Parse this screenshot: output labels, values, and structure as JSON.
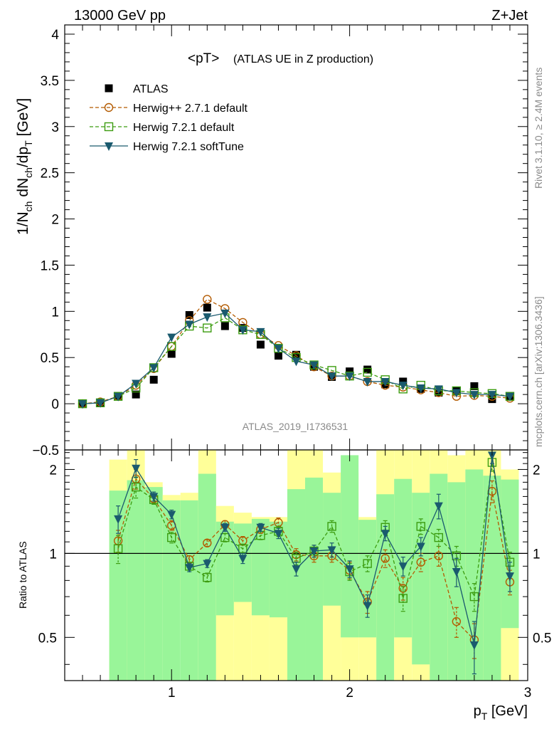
{
  "header": {
    "left": "13000 GeV pp",
    "right": "Z+Jet"
  },
  "side_labels": {
    "rivet": "Rivet 3.1.10, ≥ 2.4M events",
    "mcplots": "mcplots.cern.ch [arXiv:1306.3436]"
  },
  "watermark": "ATLAS_2019_I1736531",
  "chart_data": [
    {
      "type": "scatter",
      "title": "<pT> (ATLAS UE in Z production)",
      "title_main": "<pT>",
      "title_sub": "(ATLAS UE in Z production)",
      "ylabel": "1/N_ch dN_ch/dp_T [GeV]",
      "xlim": [
        0.4,
        3.0
      ],
      "ylim": [
        -0.5,
        4.1
      ],
      "x_ticks": [],
      "y_ticks": [
        "−0.5",
        "0",
        "0.5",
        "1",
        "1.5",
        "2",
        "2.5",
        "3",
        "3.5",
        "4"
      ],
      "y_tick_values": [
        -0.5,
        0,
        0.5,
        1,
        1.5,
        2,
        2.5,
        3,
        3.5,
        4
      ],
      "legend_position": "top-left",
      "x": [
        0.5,
        0.6,
        0.7,
        0.8,
        0.9,
        1.0,
        1.1,
        1.2,
        1.3,
        1.4,
        1.5,
        1.6,
        1.7,
        1.8,
        1.9,
        2.0,
        2.1,
        2.2,
        2.3,
        2.4,
        2.5,
        2.6,
        2.7,
        2.8,
        2.9
      ],
      "series": [
        {
          "name": "ATLAS",
          "color": "#000000",
          "marker": "filled-square",
          "values": [
            0.0,
            0.01,
            0.08,
            0.1,
            0.26,
            0.54,
            0.96,
            1.04,
            0.84,
            0.82,
            0.64,
            0.52,
            0.53,
            0.4,
            0.29,
            0.35,
            0.37,
            0.21,
            0.24,
            0.16,
            0.12,
            0.14,
            0.19,
            0.05,
            0.08
          ]
        },
        {
          "name": "Herwig++ 2.7.1 default",
          "color": "#b35a00",
          "marker": "open-circle",
          "values": [
            0.0,
            0.02,
            0.08,
            0.2,
            0.38,
            0.62,
            0.9,
            1.13,
            1.03,
            0.88,
            0.75,
            0.63,
            0.52,
            0.4,
            0.3,
            0.3,
            0.24,
            0.2,
            0.18,
            0.15,
            0.12,
            0.08,
            0.09,
            0.08,
            0.06
          ]
        },
        {
          "name": "Herwig 7.2.1 default",
          "color": "#3c9c10",
          "marker": "open-square",
          "values": [
            0.0,
            0.01,
            0.08,
            0.17,
            0.39,
            0.62,
            0.84,
            0.82,
            0.93,
            0.8,
            0.75,
            0.6,
            0.5,
            0.42,
            0.36,
            0.3,
            0.34,
            0.26,
            0.16,
            0.2,
            0.14,
            0.14,
            0.12,
            0.11,
            0.08
          ]
        },
        {
          "name": "Herwig 7.2.1 softTune",
          "color": "#1a5a6e",
          "marker": "filled-triangle-down",
          "values": [
            0.0,
            0.01,
            0.08,
            0.22,
            0.39,
            0.72,
            0.86,
            0.94,
            0.98,
            0.8,
            0.78,
            0.6,
            0.46,
            0.42,
            0.3,
            0.3,
            0.24,
            0.24,
            0.2,
            0.17,
            0.16,
            0.12,
            0.1,
            0.1,
            0.08
          ]
        }
      ]
    },
    {
      "type": "scatter",
      "title": "",
      "ylabel": "Ratio to ATLAS",
      "xlabel": "p_T [GeV]",
      "xlim": [
        0.4,
        3.0
      ],
      "ylim": [
        0.35,
        2.35
      ],
      "x_ticks": [
        "1",
        "2",
        "3"
      ],
      "x_tick_values": [
        1,
        2,
        3
      ],
      "y_ticks_left": [
        "0.5",
        "1",
        "2"
      ],
      "y_ticks_right": [
        "0.5",
        "1",
        "2"
      ],
      "y_tick_values": [
        0.5,
        1,
        2
      ],
      "reference_line": 1,
      "bands": {
        "x_edges": [
          0.65,
          0.75,
          0.85,
          0.95,
          1.05,
          1.15,
          1.25,
          1.35,
          1.45,
          1.55,
          1.65,
          1.75,
          1.85,
          1.95,
          2.05,
          2.15,
          2.25,
          2.35,
          2.45,
          2.55,
          2.65,
          2.75,
          2.85,
          2.95
        ],
        "yellow_color": "#ffff99",
        "green_color": "#99f599",
        "yellow_low": [
          0.35,
          0.35,
          0.35,
          0.71,
          0.7,
          0.35,
          0.35,
          0.35,
          0.35,
          0.35,
          0.35,
          0.35,
          0.35,
          0.35,
          0.35,
          0.35,
          0.35,
          0.35,
          0.35,
          0.35,
          0.35,
          0.35,
          0.35
        ],
        "yellow_high": [
          2.17,
          2.35,
          1.8,
          1.62,
          1.65,
          2.35,
          1.48,
          1.4,
          1.35,
          1.35,
          2.35,
          2.35,
          1.95,
          1.95,
          1.35,
          2.35,
          2.35,
          2.35,
          2.35,
          2.25,
          2.35,
          2.35,
          2.0
        ],
        "green_low": [
          0.35,
          0.35,
          0.35,
          0.35,
          0.35,
          0.35,
          0.6,
          0.67,
          0.6,
          0.59,
          0.35,
          0.35,
          0.65,
          0.5,
          0.5,
          0.35,
          0.5,
          0.4,
          0.35,
          0.35,
          0.35,
          0.35,
          0.54
        ],
        "green_high": [
          1.68,
          1.83,
          1.73,
          1.55,
          1.55,
          1.93,
          1.3,
          1.28,
          1.33,
          1.3,
          1.7,
          1.87,
          1.65,
          2.25,
          1.32,
          1.63,
          1.85,
          1.65,
          1.93,
          1.8,
          2.0,
          1.9,
          1.84
        ]
      },
      "x": [
        0.7,
        0.8,
        0.9,
        1.0,
        1.1,
        1.2,
        1.3,
        1.4,
        1.5,
        1.6,
        1.7,
        1.8,
        1.9,
        2.0,
        2.1,
        2.2,
        2.3,
        2.4,
        2.5,
        2.6,
        2.7,
        2.8,
        2.9
      ],
      "series": [
        {
          "name": "Herwig++ 2.7.1 default",
          "color": "#b35a00",
          "marker": "open-circle",
          "values": [
            1.11,
            1.85,
            1.57,
            1.26,
            0.95,
            1.09,
            1.27,
            1.11,
            1.22,
            1.29,
            0.99,
            0.98,
            0.98,
            0.87,
            0.67,
            0.96,
            0.75,
            0.93,
            0.98,
            0.57,
            0.49,
            1.67,
            0.79
          ],
          "errors": [
            0.1,
            0.15,
            0.06,
            0.05,
            0.03,
            0.03,
            0.04,
            0.04,
            0.04,
            0.05,
            0.05,
            0.05,
            0.05,
            0.06,
            0.06,
            0.07,
            0.07,
            0.07,
            0.08,
            0.07,
            0.07,
            0.15,
            0.08
          ]
        },
        {
          "name": "Herwig 7.2.1 default",
          "color": "#3c9c10",
          "marker": "open-square",
          "values": [
            1.04,
            1.73,
            1.56,
            1.14,
            0.9,
            0.82,
            1.14,
            1.04,
            1.16,
            1.2,
            0.96,
            1.02,
            1.25,
            0.86,
            0.92,
            1.24,
            0.69,
            1.25,
            1.14,
            0.98,
            0.7,
            2.12,
            0.93
          ],
          "errors": [
            0.12,
            0.15,
            0.06,
            0.05,
            0.03,
            0.03,
            0.04,
            0.04,
            0.04,
            0.05,
            0.05,
            0.05,
            0.06,
            0.06,
            0.06,
            0.07,
            0.07,
            0.08,
            0.08,
            0.08,
            0.08,
            0.15,
            0.08
          ]
        },
        {
          "name": "Herwig 7.2.1 softTune",
          "color": "#1a5a6e",
          "marker": "filled-triangle-down",
          "values": [
            1.33,
            2.02,
            1.6,
            1.38,
            0.89,
            0.92,
            1.24,
            0.96,
            1.24,
            1.18,
            0.88,
            1.02,
            1.03,
            0.88,
            0.65,
            1.18,
            0.9,
            1.06,
            1.48,
            0.86,
            0.47,
            2.25,
            0.83
          ],
          "errors": [
            0.15,
            0.15,
            0.06,
            0.05,
            0.03,
            0.03,
            0.04,
            0.04,
            0.04,
            0.05,
            0.05,
            0.05,
            0.06,
            0.06,
            0.06,
            0.07,
            0.07,
            0.08,
            0.15,
            0.1,
            0.1,
            0.15,
            0.1
          ]
        }
      ]
    }
  ]
}
